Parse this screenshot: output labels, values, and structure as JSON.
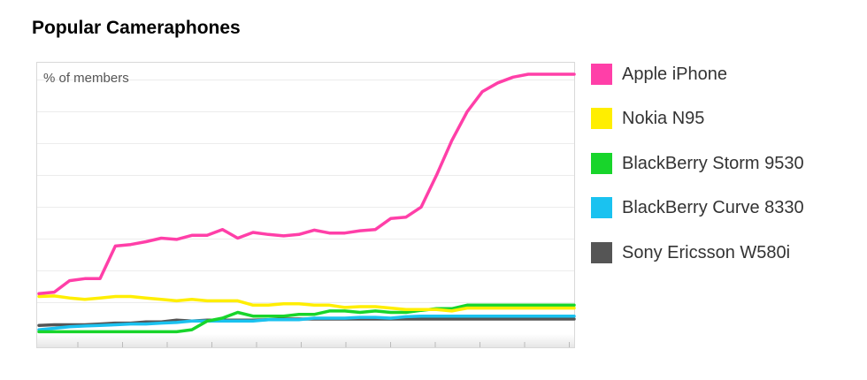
{
  "chart_data": {
    "type": "line",
    "title": "Popular Cameraphones",
    "ylabel": "% of members",
    "xlabel": "",
    "x": [
      1,
      2,
      3,
      4,
      5,
      6,
      7,
      8,
      9,
      10,
      11,
      12,
      13,
      14,
      15,
      16,
      17,
      18,
      19,
      20,
      21,
      22,
      23,
      24,
      25,
      26,
      27,
      28,
      29,
      30,
      31,
      32,
      33,
      34,
      35,
      36
    ],
    "ylim": [
      0,
      9
    ],
    "grid": true,
    "legend_position": "right",
    "series": [
      {
        "name": "Apple iPhone",
        "color": "#ff3fa8",
        "values": [
          1.4,
          1.45,
          1.85,
          1.92,
          1.92,
          3.05,
          3.1,
          3.2,
          3.32,
          3.28,
          3.42,
          3.42,
          3.62,
          3.32,
          3.52,
          3.45,
          3.4,
          3.45,
          3.6,
          3.5,
          3.5,
          3.58,
          3.62,
          4.0,
          4.05,
          4.4,
          5.5,
          6.7,
          7.7,
          8.4,
          8.7,
          8.9,
          9.0,
          9.0,
          9.0,
          9.0
        ]
      },
      {
        "name": "Nokia N95",
        "color": "#ffee00",
        "values": [
          1.3,
          1.32,
          1.25,
          1.2,
          1.25,
          1.3,
          1.3,
          1.25,
          1.2,
          1.15,
          1.2,
          1.15,
          1.15,
          1.15,
          1.0,
          1.0,
          1.05,
          1.05,
          1.0,
          1.0,
          0.92,
          0.95,
          0.95,
          0.9,
          0.85,
          0.85,
          0.85,
          0.8,
          0.9,
          0.9,
          0.9,
          0.9,
          0.9,
          0.9,
          0.9,
          0.9
        ]
      },
      {
        "name": "BlackBerry Storm 9530",
        "color": "#18d52b",
        "values": [
          0.08,
          0.08,
          0.08,
          0.08,
          0.08,
          0.08,
          0.08,
          0.08,
          0.08,
          0.08,
          0.15,
          0.45,
          0.55,
          0.75,
          0.62,
          0.62,
          0.62,
          0.68,
          0.68,
          0.8,
          0.8,
          0.75,
          0.8,
          0.75,
          0.75,
          0.82,
          0.88,
          0.88,
          1.0,
          1.0,
          1.0,
          1.0,
          1.0,
          1.0,
          1.0,
          1.0
        ]
      },
      {
        "name": "BlackBerry Curve 8330",
        "color": "#1ac2f0",
        "values": [
          0.15,
          0.2,
          0.25,
          0.28,
          0.3,
          0.32,
          0.35,
          0.35,
          0.38,
          0.4,
          0.45,
          0.45,
          0.45,
          0.45,
          0.45,
          0.5,
          0.5,
          0.5,
          0.55,
          0.55,
          0.55,
          0.58,
          0.58,
          0.55,
          0.6,
          0.62,
          0.62,
          0.62,
          0.62,
          0.62,
          0.62,
          0.62,
          0.62,
          0.62,
          0.62,
          0.62
        ]
      },
      {
        "name": "Sony Ericsson W580i",
        "color": "#555555",
        "values": [
          0.3,
          0.32,
          0.32,
          0.32,
          0.35,
          0.38,
          0.38,
          0.42,
          0.42,
          0.48,
          0.45,
          0.48,
          0.48,
          0.48,
          0.48,
          0.5,
          0.52,
          0.52,
          0.52,
          0.52,
          0.52,
          0.52,
          0.52,
          0.52,
          0.52,
          0.52,
          0.52,
          0.52,
          0.52,
          0.52,
          0.52,
          0.52,
          0.52,
          0.52,
          0.52,
          0.52
        ]
      }
    ]
  }
}
